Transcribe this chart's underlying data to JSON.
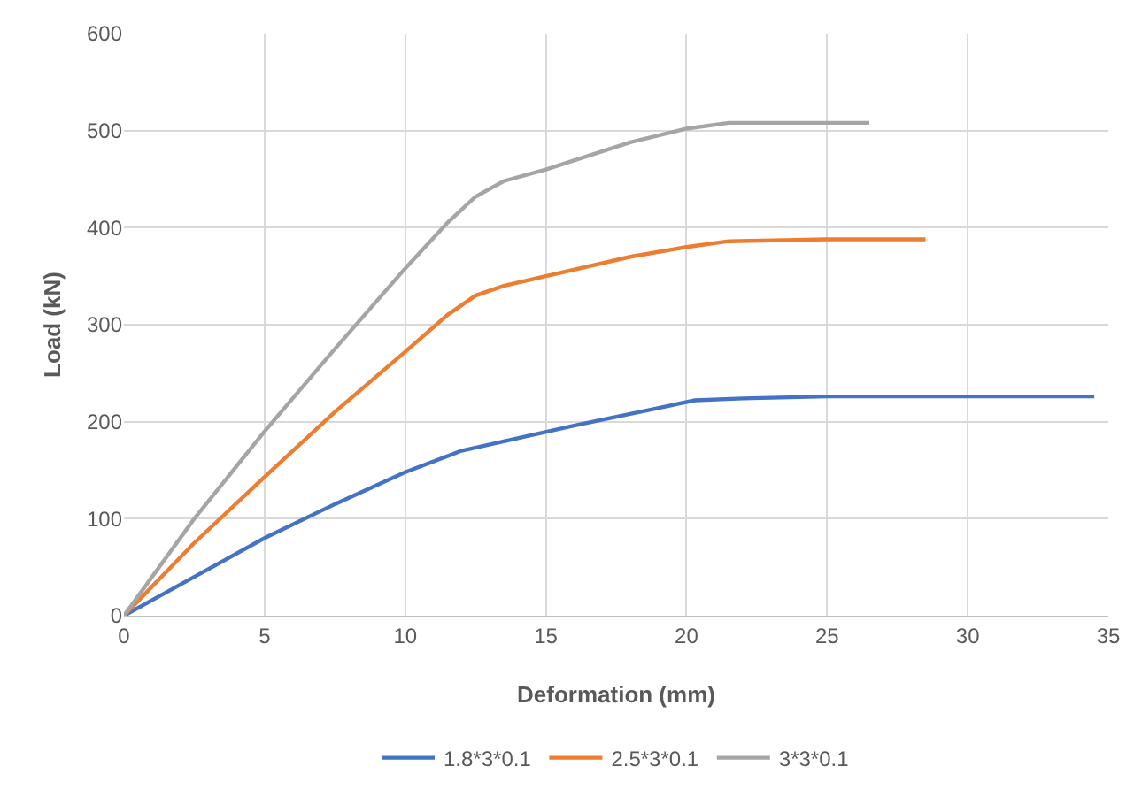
{
  "chart_data": {
    "type": "line",
    "xlabel": "Deformation (mm)",
    "ylabel": "Load (kN)",
    "xlim": [
      0,
      35
    ],
    "xticks": [
      0,
      5,
      10,
      15,
      20,
      25,
      30,
      35
    ],
    "ylim": [
      0,
      600
    ],
    "yticks": [
      0,
      100,
      200,
      300,
      400,
      500,
      600
    ],
    "grid": true,
    "legend": "bottom",
    "marker": "none",
    "line_style": "solid",
    "series": [
      {
        "name": "1.8*3*0.1",
        "color": "#4472c4",
        "x": [
          0,
          2.5,
          5,
          7.5,
          10,
          12,
          14,
          16,
          18,
          20.3,
          22,
          25,
          30,
          34.5
        ],
        "values": [
          0,
          40,
          80,
          115,
          148,
          170,
          183,
          196,
          208,
          222,
          224,
          226,
          226,
          226
        ]
      },
      {
        "name": "2.5*3*0.1",
        "color": "#ed7d31",
        "x": [
          0,
          2.5,
          5,
          7.5,
          10,
          11.5,
          12.5,
          13.5,
          15,
          18,
          20,
          21.5,
          25,
          28.5
        ],
        "values": [
          0,
          75,
          143,
          210,
          272,
          310,
          330,
          340,
          350,
          370,
          380,
          386,
          388,
          388
        ]
      },
      {
        "name": "3*3*0.1",
        "color": "#a5a5a5",
        "x": [
          0,
          2.5,
          5,
          7.5,
          10,
          11.5,
          12.5,
          13.5,
          15,
          18,
          20,
          21.5,
          26.5
        ],
        "values": [
          0,
          100,
          190,
          275,
          358,
          405,
          432,
          448,
          460,
          488,
          502,
          508,
          508
        ]
      }
    ]
  }
}
